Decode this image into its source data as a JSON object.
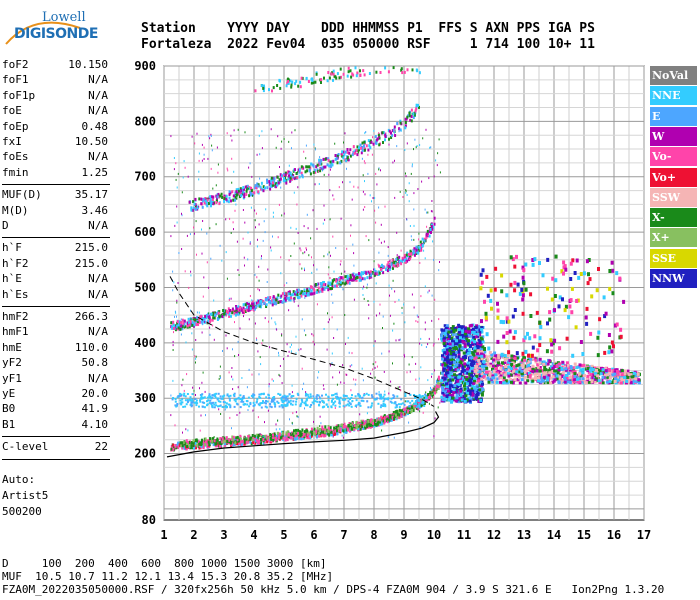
{
  "logo": {
    "line1": "Lowell",
    "line2": "DIGISONDE"
  },
  "header": {
    "line1": "Station    YYYY DAY    DDD HHMMSS P1  FFS S AXN PPS IGA PS",
    "line2": "Fortaleza  2022 Fev04  035 050000 RSF     1 714 100 10+ 11"
  },
  "params": {
    "group1": [
      {
        "k": "foF2",
        "v": "10.150"
      },
      {
        "k": "foF1",
        "v": "N/A"
      },
      {
        "k": "foF1p",
        "v": "N/A"
      },
      {
        "k": "foE",
        "v": "N/A"
      },
      {
        "k": "foEp",
        "v": "0.48"
      },
      {
        "k": "fxI",
        "v": "10.50"
      },
      {
        "k": "foEs",
        "v": "N/A"
      },
      {
        "k": "fmin",
        "v": "1.25"
      }
    ],
    "group2": [
      {
        "k": "MUF(D)",
        "v": "35.17"
      },
      {
        "k": "M(D)",
        "v": "3.46"
      },
      {
        "k": "D",
        "v": "N/A"
      }
    ],
    "group3": [
      {
        "k": "h`F",
        "v": "215.0"
      },
      {
        "k": "h`F2",
        "v": "215.0"
      },
      {
        "k": "h`E",
        "v": "N/A"
      },
      {
        "k": "h`Es",
        "v": "N/A"
      }
    ],
    "group4": [
      {
        "k": "hmF2",
        "v": "266.3"
      },
      {
        "k": "hmF1",
        "v": "N/A"
      },
      {
        "k": "hmE",
        "v": "110.0"
      },
      {
        "k": "yF2",
        "v": "50.8"
      },
      {
        "k": "yF1",
        "v": "N/A"
      },
      {
        "k": "yE",
        "v": "20.0"
      },
      {
        "k": "B0",
        "v": "41.9"
      },
      {
        "k": "B1",
        "v": "4.10"
      }
    ],
    "group5": [
      {
        "k": "C-level",
        "v": "22"
      }
    ],
    "notes": [
      "Auto:",
      "Artist5",
      "500200"
    ]
  },
  "legend": [
    {
      "label": "NoVal",
      "color": "#808080"
    },
    {
      "label": "NNE",
      "color": "#33ccff"
    },
    {
      "label": "E",
      "color": "#4da6ff"
    },
    {
      "label": "W",
      "color": "#b000b0"
    },
    {
      "label": "Vo-",
      "color": "#ff44aa"
    },
    {
      "label": "Vo+",
      "color": "#ee1133"
    },
    {
      "label": "SSW",
      "color": "#f5b5b5"
    },
    {
      "label": "X-",
      "color": "#1a8a1a"
    },
    {
      "label": "X+",
      "color": "#88c060"
    },
    {
      "label": "SSE",
      "color": "#d8d800"
    },
    {
      "label": "NNW",
      "color": "#2020c0"
    }
  ],
  "footer": {
    "line1": "D     100  200  400  600  800 1000 1500 3000 [km]",
    "line2": "MUF  10.5 10.7 11.2 12.1 13.4 15.3 20.8 35.2 [MHz]",
    "line3": "FZA0M_2022035050000.RSF / 320fx256h 50 kHz 5.0 km / DPS-4 FZA0M 904 / 3.9 S 321.6 E   Ion2Png 1.3.20"
  },
  "chart_data": {
    "type": "scatter",
    "xlim": [
      1,
      17
    ],
    "ylim": [
      80,
      900
    ],
    "x_ticks": [
      1,
      2,
      3,
      4,
      5,
      6,
      7,
      8,
      9,
      10,
      11,
      12,
      13,
      14,
      15,
      16,
      17
    ],
    "y_ticks": [
      80,
      200,
      300,
      400,
      500,
      600,
      700,
      800,
      900
    ],
    "grid": true,
    "traces": [
      {
        "name": "O trace",
        "x": [
          1.2,
          2,
          3,
          4,
          5,
          6,
          7,
          8,
          8.5,
          9,
          9.5,
          9.8,
          10,
          10.15
        ],
        "y": [
          215,
          218,
          222,
          226,
          232,
          238,
          246,
          258,
          266,
          278,
          292,
          305,
          320,
          340
        ]
      },
      {
        "name": "X trace",
        "x": [
          1.5,
          2,
          3,
          4,
          5,
          6,
          7,
          8,
          9,
          9.5,
          9.9,
          10.2,
          10.5
        ],
        "y": [
          220,
          222,
          226,
          230,
          236,
          243,
          250,
          260,
          278,
          292,
          310,
          330,
          350
        ]
      },
      {
        "name": "2nd hop",
        "x": [
          1.2,
          2,
          3,
          4,
          5,
          6,
          7,
          8,
          9,
          9.5,
          9.8,
          10
        ],
        "y": [
          432,
          440,
          455,
          470,
          485,
          500,
          515,
          530,
          555,
          575,
          600,
          625
        ]
      },
      {
        "name": "3rd hop",
        "x": [
          1.8,
          3,
          4,
          5,
          6,
          7,
          8,
          8.5,
          9,
          9.5
        ],
        "y": [
          650,
          665,
          680,
          700,
          720,
          740,
          765,
          780,
          800,
          830
        ]
      },
      {
        "name": "4th hop",
        "x": [
          4,
          5,
          6,
          7,
          8,
          9,
          9.5
        ],
        "y": [
          860,
          870,
          880,
          890,
          900,
          900,
          900
        ]
      },
      {
        "name": "Profile",
        "x": [
          1.1,
          2,
          3,
          4,
          5,
          6,
          7,
          8,
          9,
          9.6,
          10,
          10.15,
          10.05
        ],
        "y": [
          194,
          203,
          210,
          214,
          218,
          221,
          224,
          228,
          238,
          246,
          256,
          266,
          276
        ]
      },
      {
        "name": "Dashed profile",
        "x": [
          1.2,
          1.5,
          2,
          3,
          4,
          5,
          6,
          7,
          8,
          9,
          9.6,
          10
        ],
        "y": [
          520,
          490,
          450,
          420,
          400,
          385,
          370,
          355,
          335,
          312,
          298,
          285
        ]
      }
    ]
  }
}
